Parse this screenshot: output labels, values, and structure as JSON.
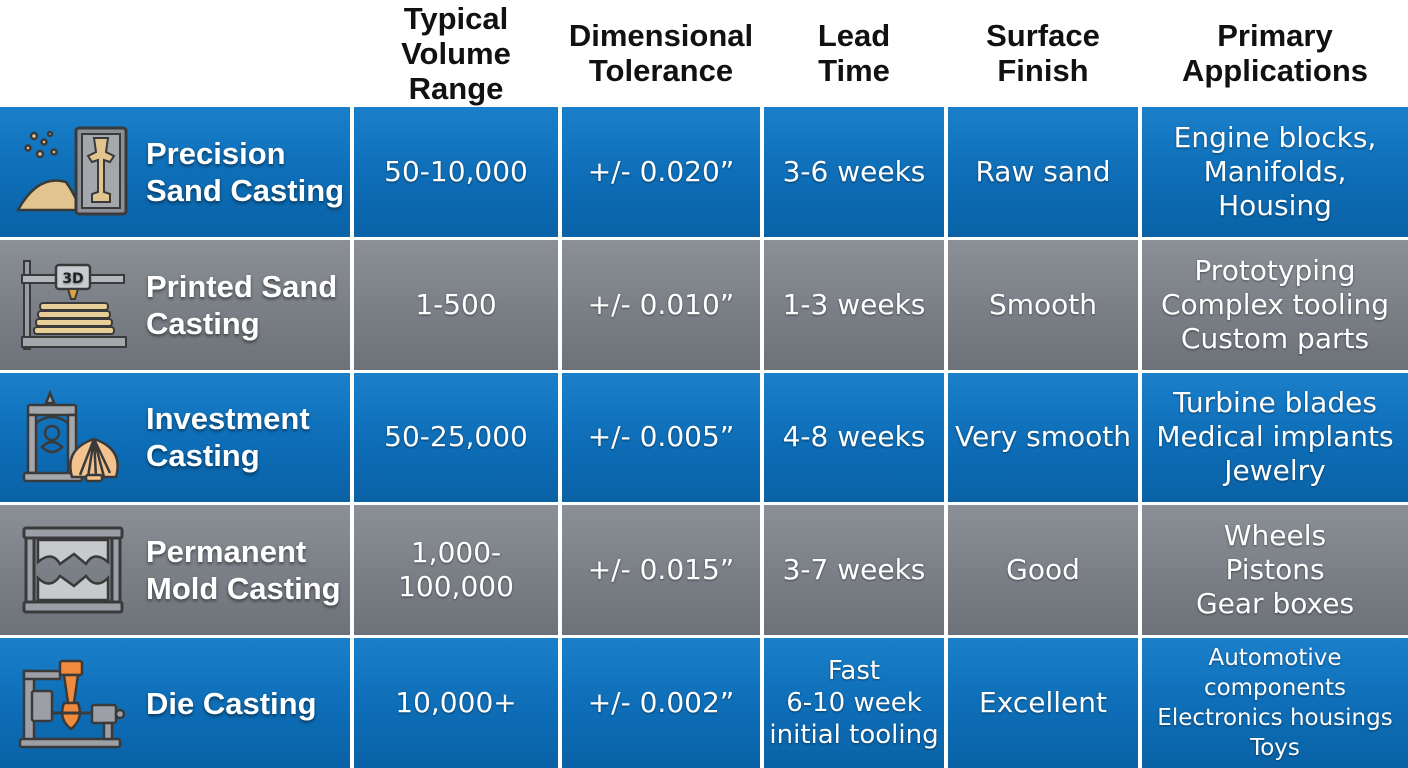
{
  "headers": {
    "method": "",
    "volume": "Typical\nVolume Range",
    "tolerance": "Dimensional\nTolerance",
    "lead_time": "Lead\nTime",
    "finish": "Surface\nFinish",
    "applications": "Primary\nApplications"
  },
  "colors": {
    "row_blue": "#0d6db6",
    "row_gray": "#7a7f86",
    "header_text": "#111111",
    "cell_text": "#ffffff"
  },
  "rows": [
    {
      "method": "Precision\nSand Casting",
      "icon": "sand-casting-icon",
      "volume": "50-10,000",
      "tolerance": "+/- 0.020”",
      "lead_time": "3-6 weeks",
      "finish": "Raw sand",
      "applications": "Engine blocks,\nManifolds,\nHousing"
    },
    {
      "method": "Printed Sand\nCasting",
      "icon": "3d-printer-icon",
      "icon_label": "3D",
      "volume": "1-500",
      "tolerance": "+/- 0.010”",
      "lead_time": "1-3 weeks",
      "finish": "Smooth",
      "applications": "Prototyping\nComplex tooling\nCustom parts"
    },
    {
      "method": "Investment\nCasting",
      "icon": "investment-casting-icon",
      "volume": "50-25,000",
      "tolerance": "+/- 0.005”",
      "lead_time": "4-8 weeks",
      "finish": "Very smooth",
      "applications": "Turbine blades\nMedical implants\nJewelry"
    },
    {
      "method": "Permanent\nMold Casting",
      "icon": "permanent-mold-icon",
      "volume": "1,000-\n100,000",
      "tolerance": "+/- 0.015”",
      "lead_time": "3-7 weeks",
      "finish": "Good",
      "applications": "Wheels\nPistons\nGear boxes"
    },
    {
      "method": "Die Casting",
      "icon": "die-casting-icon",
      "volume": "10,000+",
      "tolerance": "+/- 0.002”",
      "lead_time": "Fast\n6-10 week\ninitial tooling",
      "finish": "Excellent",
      "applications": "Automotive components\nElectronics housings\nToys"
    }
  ]
}
